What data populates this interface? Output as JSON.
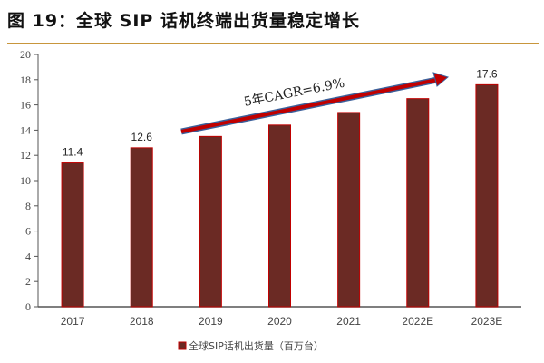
{
  "title": "图 19：全球 SIP 话机终端出货量稳定增长",
  "chart_data": {
    "type": "bar",
    "categories": [
      "2017",
      "2018",
      "2019",
      "2020",
      "2021",
      "2022E",
      "2023E"
    ],
    "series": [
      {
        "name": "全球SIP话机出货量（百万台）",
        "values": [
          11.4,
          12.6,
          13.5,
          14.4,
          15.4,
          16.5,
          17.6
        ]
      }
    ],
    "data_labels": {
      "0": "11.4",
      "1": "12.6",
      "6": "17.6"
    },
    "ylim": [
      0,
      20
    ],
    "yticks": [
      "0",
      "2",
      "4",
      "6",
      "8",
      "10",
      "12",
      "14",
      "16",
      "18",
      "20"
    ],
    "annotation": "5年CAGR=6.9%",
    "legend": "bottom",
    "grid": false,
    "colors": {
      "bar": "#6b2a24",
      "bar_edge": "#c00000",
      "arrow": "#c00000",
      "arrow_edge": "#3a5f9a",
      "rule": "#c8963c"
    }
  }
}
